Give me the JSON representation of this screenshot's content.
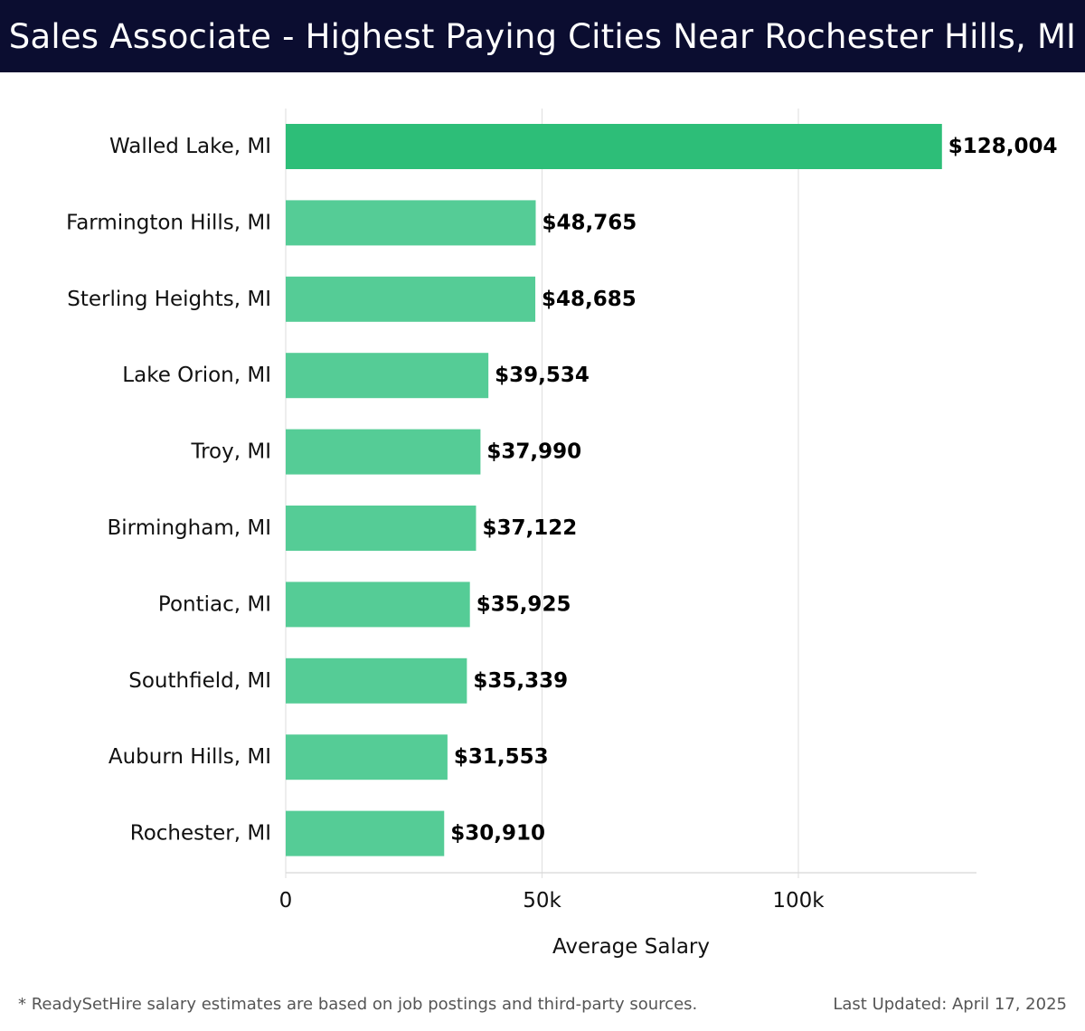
{
  "header": {
    "title": "Sales Associate - Highest Paying Cities Near Rochester Hills, MI"
  },
  "chart_data": {
    "type": "bar",
    "orientation": "horizontal",
    "title": "Sales Associate - Highest Paying Cities Near Rochester Hills, MI",
    "categories": [
      "Walled Lake, MI",
      "Farmington Hills, MI",
      "Sterling Heights, MI",
      "Lake Orion, MI",
      "Troy, MI",
      "Birmingham, MI",
      "Pontiac, MI",
      "Southfield, MI",
      "Auburn Hills, MI",
      "Rochester, MI"
    ],
    "values": [
      128004,
      48765,
      48685,
      39534,
      37990,
      37122,
      35925,
      35339,
      31553,
      30910
    ],
    "data_labels": [
      "$128,004",
      "$48,765",
      "$48,685",
      "$39,534",
      "$37,990",
      "$37,122",
      "$35,925",
      "$35,339",
      "$31,553",
      "$30,910"
    ],
    "xlabel": "Average Salary",
    "ylabel": "",
    "xlim": [
      0,
      135000
    ],
    "xticks": [
      0,
      50000,
      100000
    ],
    "xtick_labels": [
      "0",
      "50k",
      "100k"
    ],
    "grid": "vertical",
    "colors": {
      "top_bar": "#2dbe78",
      "bar": "#55cc96",
      "grid": "#e2e2e2",
      "label": "#000000"
    }
  },
  "footer": {
    "note": "* ReadySetHire salary estimates are based on job postings and third-party sources.",
    "updated": "Last Updated: April 17, 2025"
  }
}
